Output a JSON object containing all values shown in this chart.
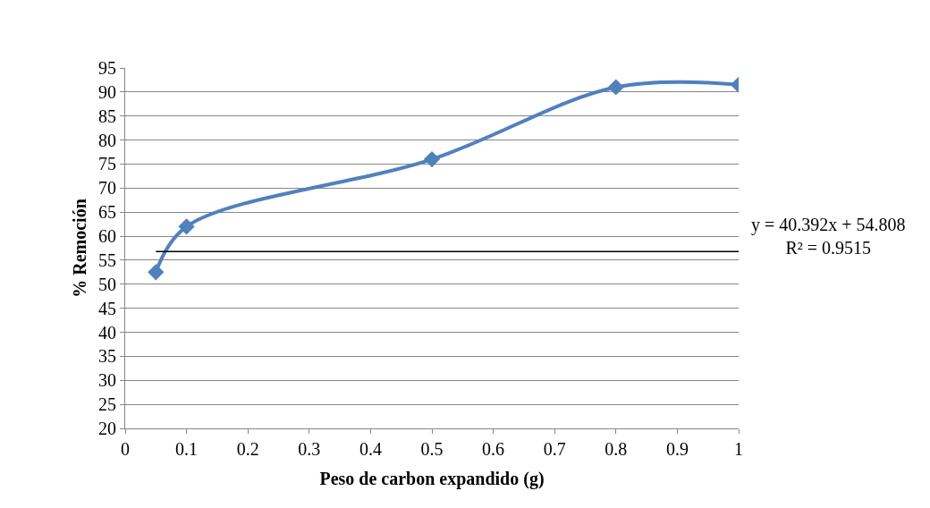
{
  "chart_data": {
    "type": "line",
    "xlabel": "Peso de carbon expandido (g)",
    "ylabel": "% Remoción",
    "x": [
      0.05,
      0.1,
      0.5,
      0.8,
      1
    ],
    "series": [
      {
        "color": "#4f81bd",
        "values": [
          52.5,
          62,
          76,
          91,
          91.5
        ],
        "marker": "diamond"
      },
      {
        "type": "line",
        "color": "#000000",
        "x": [
          0.05,
          1
        ],
        "values": [
          56.8,
          56.8
        ],
        "marker": "none"
      }
    ],
    "annotations": [
      "y = 40.392x + 54.808\nR² = 0.9515"
    ],
    "xlim": [
      0,
      1
    ],
    "xticks": [
      0,
      0.1,
      0.2,
      0.3,
      0.4,
      0.5,
      0.6,
      0.7,
      0.8,
      0.9,
      1
    ],
    "ylim": [
      20,
      95
    ],
    "yticks": [
      20,
      25,
      30,
      35,
      40,
      45,
      50,
      55,
      60,
      65,
      70,
      75,
      80,
      85,
      90,
      95
    ],
    "grid": "y",
    "line_style": "solid"
  }
}
